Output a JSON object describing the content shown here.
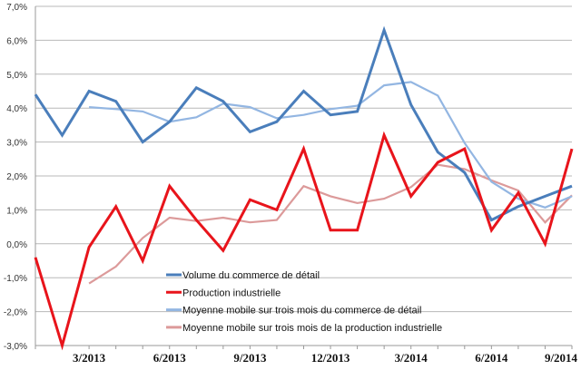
{
  "chart_data": {
    "type": "line",
    "title": "",
    "xlabel": "",
    "ylabel": "",
    "ylim": [
      -3,
      7
    ],
    "y_ticks": [
      "7,0%",
      "6,0%",
      "5,0%",
      "4,0%",
      "3,0%",
      "2,0%",
      "1,0%",
      "0,0%",
      "-1,0%",
      "-2,0%",
      "-3,0%"
    ],
    "y_tick_values": [
      7,
      6,
      5,
      4,
      3,
      2,
      1,
      0,
      -1,
      -2,
      -3
    ],
    "x": [
      "1/2013",
      "2/2013",
      "3/2013",
      "4/2013",
      "5/2013",
      "6/2013",
      "7/2013",
      "8/2013",
      "9/2013",
      "10/2013",
      "11/2013",
      "12/2013",
      "1/2014",
      "2/2014",
      "3/2014",
      "4/2014",
      "5/2014",
      "6/2014",
      "7/2014",
      "8/2014",
      "9/2014"
    ],
    "x_tick_labels": [
      {
        "index": 2,
        "label": "3/2013"
      },
      {
        "index": 5,
        "label": "6/2013"
      },
      {
        "index": 8,
        "label": "9/2013"
      },
      {
        "index": 11,
        "label": "12/2013"
      },
      {
        "index": 14,
        "label": "3/2014"
      },
      {
        "index": 17,
        "label": "6/2014"
      },
      {
        "index": 20,
        "label": "9/2014"
      }
    ],
    "grid": true,
    "legend_position": "bottom-center",
    "series": [
      {
        "name": "Volume du commerce de détail",
        "color": "#4a7ebb",
        "values": [
          4.4,
          3.2,
          4.5,
          4.2,
          3.0,
          3.6,
          4.6,
          4.2,
          3.3,
          3.6,
          4.5,
          3.8,
          3.9,
          6.3,
          4.1,
          2.7,
          2.1,
          0.7,
          1.1,
          1.4,
          1.7
        ]
      },
      {
        "name": "Production industrielle",
        "color": "#e8141b",
        "values": [
          -0.4,
          -3.0,
          -0.1,
          1.1,
          -0.5,
          1.7,
          0.7,
          -0.2,
          1.3,
          1.0,
          2.8,
          0.4,
          0.4,
          3.2,
          1.4,
          2.4,
          2.8,
          0.4,
          1.5,
          0.0,
          2.8
        ]
      },
      {
        "name": "Moyenne mobile sur trois mois du commerce de détail",
        "color": "#93b6e2",
        "values": [
          null,
          null,
          4.03,
          3.97,
          3.9,
          3.6,
          3.73,
          4.13,
          4.03,
          3.7,
          3.8,
          3.97,
          4.07,
          4.67,
          4.77,
          4.37,
          2.97,
          1.83,
          1.33,
          1.07,
          1.4
        ]
      },
      {
        "name": "Moyenne mobile sur trois mois de la production industrielle",
        "color": "#dc9a9a",
        "values": [
          null,
          null,
          -1.17,
          -0.67,
          0.17,
          0.77,
          0.67,
          0.77,
          0.63,
          0.7,
          1.7,
          1.4,
          1.2,
          1.33,
          1.67,
          2.33,
          2.2,
          1.87,
          1.57,
          0.63,
          1.43
        ]
      }
    ]
  }
}
